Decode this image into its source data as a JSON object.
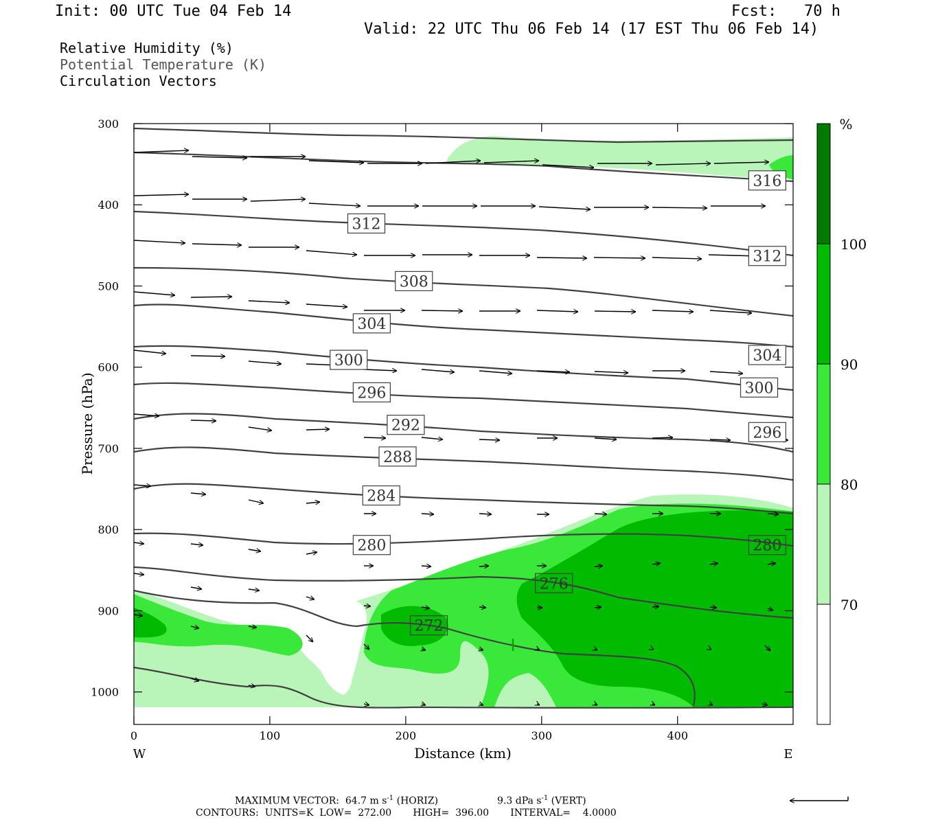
{
  "header": {
    "init": "Init: 00 UTC Tue 04 Feb 14",
    "fcst": "Fcst:   70 h",
    "valid": "Valid: 22 UTC Thu 06 Feb 14 (17 EST Thu 06 Feb 14)"
  },
  "fields": {
    "rh": "Relative Humidity (%)",
    "theta": "Potential Temperature (K)",
    "vectors": "Circulation Vectors"
  },
  "chart_data": {
    "type": "cross-section",
    "xlabel": "Distance (km)",
    "ylabel": "Pressure (hPa)",
    "xlim": [
      0,
      485
    ],
    "ylim": [
      1040,
      300
    ],
    "x_ticks": [
      0,
      100,
      200,
      300,
      400
    ],
    "y_ticks": [
      300,
      400,
      500,
      600,
      700,
      800,
      900,
      1000
    ],
    "x_end_labels": {
      "left": "W",
      "right": "E"
    },
    "colorbar": {
      "unit": "%",
      "levels": [
        70,
        80,
        90,
        100
      ],
      "colors": [
        "#ffffff",
        "#b9f5b9",
        "#3ae83a",
        "#00bb00",
        "#007a00"
      ]
    },
    "theta_labels": [
      {
        "text": "316",
        "x": 466,
        "p": 370
      },
      {
        "text": "312",
        "x": 171,
        "p": 423
      },
      {
        "text": "312",
        "x": 466,
        "p": 463
      },
      {
        "text": "308",
        "x": 206,
        "p": 494
      },
      {
        "text": "304",
        "x": 175,
        "p": 546
      },
      {
        "text": "304",
        "x": 466,
        "p": 585
      },
      {
        "text": "300",
        "x": 158,
        "p": 591
      },
      {
        "text": "300",
        "x": 460,
        "p": 625
      },
      {
        "text": "296",
        "x": 175,
        "p": 631
      },
      {
        "text": "296",
        "x": 466,
        "p": 680
      },
      {
        "text": "292",
        "x": 200,
        "p": 671
      },
      {
        "text": "288",
        "x": 194,
        "p": 710
      },
      {
        "text": "284",
        "x": 182,
        "p": 758
      },
      {
        "text": "280",
        "x": 175,
        "p": 819
      },
      {
        "text": "280",
        "x": 466,
        "p": 819
      },
      {
        "text": "276",
        "x": 309,
        "p": 866
      },
      {
        "text": "272",
        "x": 217,
        "p": 918
      }
    ]
  },
  "footer": {
    "max_vector_pre": "MAXIMUM VECTOR:  64.7 m s",
    "sup1": "-1",
    "horiz": " (HORIZ)",
    "vert_pre": "9.3 dPa s",
    "sup2": "-1",
    "vert": " (VERT)",
    "contours": "CONTOURS:  UNITS=K  LOW=  272.00       HIGH=  396.00       INTERVAL=    4.0000"
  }
}
